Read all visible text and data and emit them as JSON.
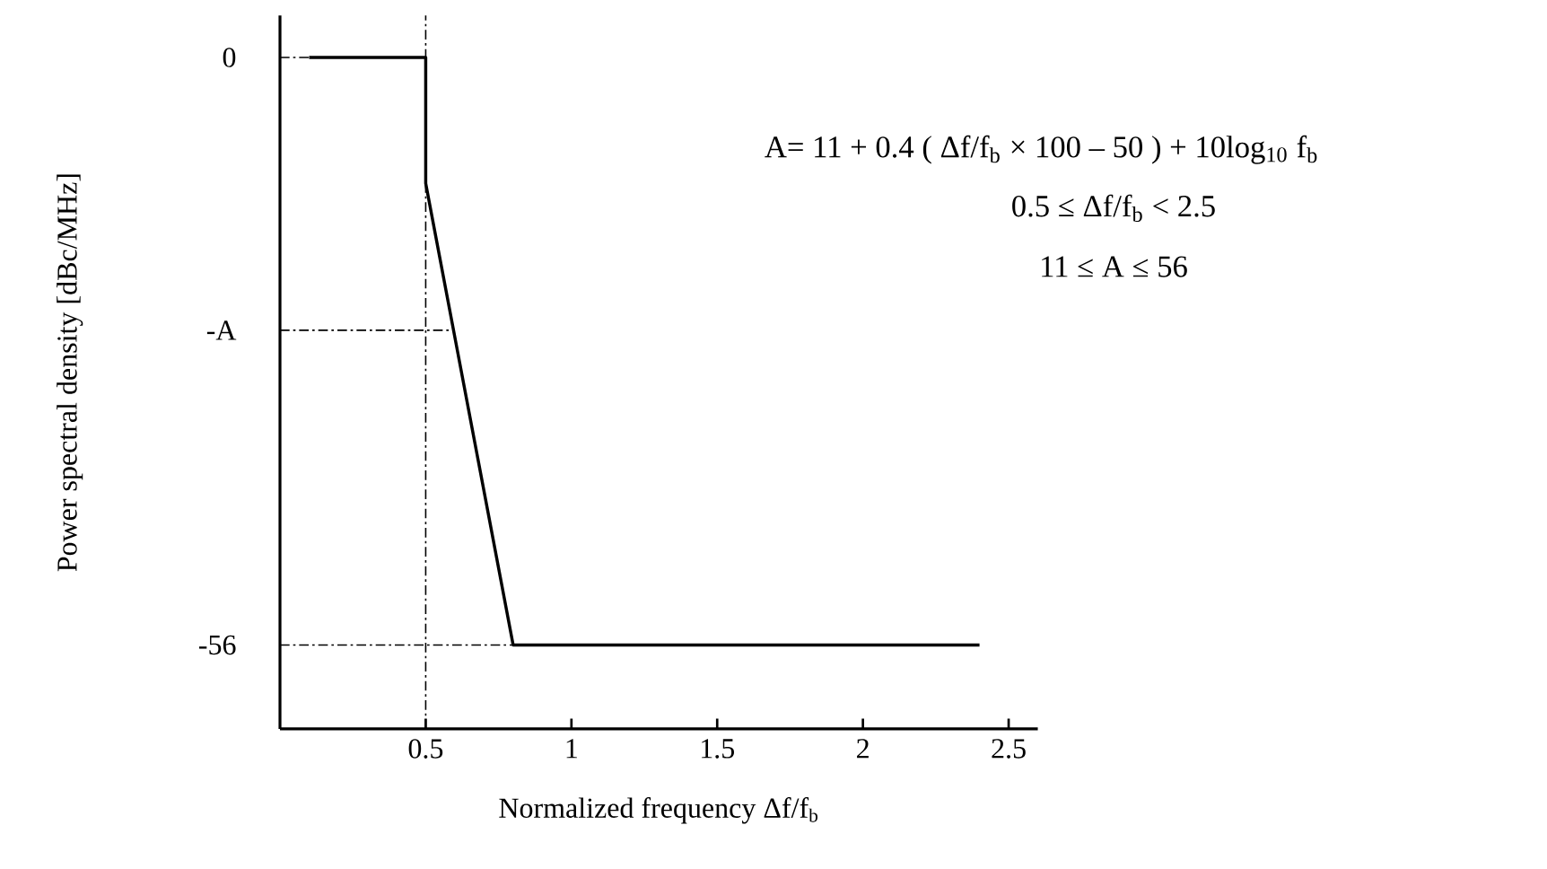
{
  "chart_data": {
    "type": "line",
    "xlabel": "Normalized frequency    Δf/f$_{b}$",
    "ylabel": "Power spectral density    [dBc/MHz]",
    "xlim": [
      0,
      2.6
    ],
    "ylim": [
      -64,
      4
    ],
    "xticks": [
      0.5,
      1,
      1.5,
      2,
      2.5
    ],
    "yticks": [
      0,
      {
        "value": -26,
        "label": "-A"
      },
      -56
    ],
    "annotations": [
      "A=  11  +  0.4  (  Δf/f$_{b}$ ×  100  –  50  )  +  10log$_{10}$ f$_{b}$",
      "0.5  ≤  Δf/f$_{b}$  <  2.5",
      "11  ≤    A    ≤  56"
    ],
    "series": [
      {
        "color": "#000000",
        "line_style": "solid",
        "x": [
          0.1,
          0.5,
          0.5,
          0.8,
          2.4
        ],
        "values": [
          0,
          0,
          -12,
          -56,
          -56
        ]
      },
      {
        "color": "#000000",
        "line_style": "dashed",
        "x": [
          0,
          0.1
        ],
        "values": [
          0,
          0
        ]
      },
      {
        "color": "#000000",
        "line_style": "dashed",
        "x": [
          0,
          0.6
        ],
        "values": [
          -26,
          -26
        ]
      },
      {
        "color": "#000000",
        "line_style": "dashed",
        "x": [
          0,
          0.8
        ],
        "values": [
          -56,
          -56
        ]
      }
    ],
    "ref_lines": [
      {
        "axis": "x",
        "value": 0.5,
        "color": "#000000",
        "line_style": "dashed"
      }
    ]
  }
}
